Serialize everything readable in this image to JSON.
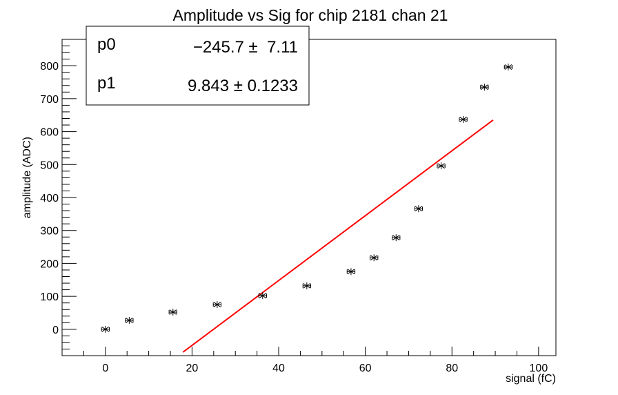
{
  "chart_data": {
    "type": "scatter",
    "title": "Amplitude vs Sig for chip 2181 chan 21",
    "xlabel": "signal (fC)",
    "ylabel": "amplitude (ADC)",
    "xlim": [
      -10,
      104
    ],
    "ylim": [
      -80,
      880
    ],
    "x_ticks": [
      0,
      20,
      40,
      60,
      80,
      100
    ],
    "y_ticks": [
      0,
      100,
      200,
      300,
      400,
      500,
      600,
      700,
      800
    ],
    "x_tick_labels": [
      "0",
      "20",
      "40",
      "60",
      "80",
      "100"
    ],
    "y_tick_labels": [
      "0",
      "100",
      "200",
      "300",
      "400",
      "500",
      "600",
      "700",
      "800"
    ],
    "grid": false,
    "legend": "none",
    "series": [
      {
        "marker": "asterisk",
        "color": "#000000",
        "x": [
          0,
          5.5,
          15.6,
          25.8,
          36.3,
          46.5,
          56.7,
          62.0,
          67.1,
          72.3,
          77.5,
          82.6,
          87.5,
          93.0
        ],
        "x_err": [
          0.9,
          0.9,
          0.9,
          0.9,
          0.9,
          0.9,
          0.9,
          0.9,
          0.9,
          0.9,
          0.9,
          0.9,
          0.9,
          0.9
        ],
        "y": [
          0,
          27,
          52,
          75,
          102,
          132,
          175,
          217,
          278,
          366,
          496,
          637,
          735,
          796
        ]
      }
    ],
    "fit": {
      "color": "#ff0000",
      "function": "p0 + p1*x",
      "x_range": [
        17.9,
        89.5
      ],
      "p0": -245.7,
      "p1": 9.843
    }
  },
  "stats_box": {
    "rows": [
      {
        "name": "p0",
        "value": "−245.7 ±  7.11"
      },
      {
        "name": "p1",
        "value": "9.843 ± 0.1233"
      }
    ]
  }
}
